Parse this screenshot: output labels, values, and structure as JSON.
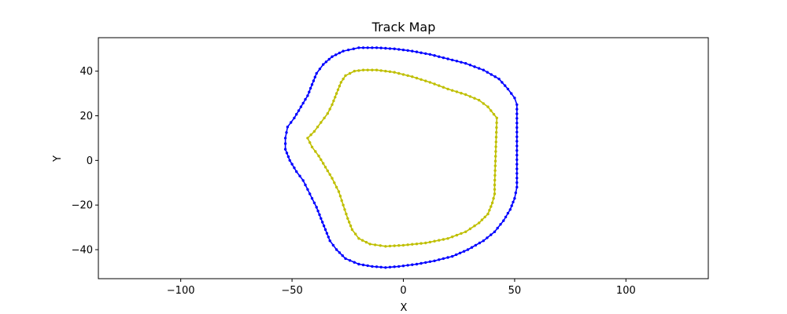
{
  "chart_data": {
    "type": "line",
    "title": "Track Map",
    "xlabel": "X",
    "ylabel": "Y",
    "xlim": [
      -137,
      137
    ],
    "ylim": [
      -53,
      55
    ],
    "xticks": [
      -100,
      -50,
      0,
      50,
      100
    ],
    "yticks": [
      -40,
      -20,
      0,
      20,
      40
    ],
    "grid": false,
    "legend": "none",
    "series": [
      {
        "color": "#0000ff",
        "marker": "dot",
        "points": [
          [
            51,
            25
          ],
          [
            51,
            -12
          ],
          [
            50,
            -17
          ],
          [
            48,
            -22
          ],
          [
            45,
            -27
          ],
          [
            41,
            -32
          ],
          [
            36,
            -36
          ],
          [
            29,
            -40
          ],
          [
            22,
            -43
          ],
          [
            14,
            -45
          ],
          [
            6,
            -46.5
          ],
          [
            -2,
            -47.5
          ],
          [
            -8,
            -48
          ],
          [
            -14,
            -47.5
          ],
          [
            -20,
            -46.5
          ],
          [
            -26,
            -44
          ],
          [
            -30,
            -40
          ],
          [
            -33,
            -36
          ],
          [
            -35,
            -31
          ],
          [
            -37,
            -26
          ],
          [
            -39,
            -21
          ],
          [
            -41,
            -17
          ],
          [
            -43,
            -13
          ],
          [
            -45,
            -9
          ],
          [
            -48,
            -5
          ],
          [
            -51,
            0
          ],
          [
            -53,
            5
          ],
          [
            -53,
            10
          ],
          [
            -52,
            15
          ],
          [
            -49,
            19
          ],
          [
            -46,
            24
          ],
          [
            -43,
            29
          ],
          [
            -41,
            34
          ],
          [
            -39,
            39
          ],
          [
            -36,
            43
          ],
          [
            -32,
            46.5
          ],
          [
            -27,
            49
          ],
          [
            -20,
            50.5
          ],
          [
            -12,
            50.5
          ],
          [
            -4,
            50
          ],
          [
            4,
            49
          ],
          [
            12,
            47.5
          ],
          [
            20,
            45.5
          ],
          [
            28,
            43.5
          ],
          [
            36,
            40.5
          ],
          [
            43,
            36.5
          ],
          [
            47,
            32
          ],
          [
            50,
            28
          ],
          [
            51,
            25
          ]
        ]
      },
      {
        "color": "#bfbf00",
        "marker": "dot",
        "points": [
          [
            42,
            19
          ],
          [
            38,
            24
          ],
          [
            34,
            27
          ],
          [
            28,
            29.5
          ],
          [
            20,
            32
          ],
          [
            12,
            35
          ],
          [
            4,
            37.5
          ],
          [
            -4,
            39.5
          ],
          [
            -12,
            40.5
          ],
          [
            -18,
            40.5
          ],
          [
            -22,
            40
          ],
          [
            -26,
            38
          ],
          [
            -28,
            35
          ],
          [
            -30,
            30
          ],
          [
            -32,
            25
          ],
          [
            -34,
            21
          ],
          [
            -37,
            17
          ],
          [
            -40,
            13
          ],
          [
            -43,
            10
          ],
          [
            -41,
            6
          ],
          [
            -38,
            2
          ],
          [
            -35,
            -3
          ],
          [
            -32,
            -8
          ],
          [
            -29,
            -14
          ],
          [
            -27,
            -20
          ],
          [
            -25,
            -26
          ],
          [
            -23,
            -31
          ],
          [
            -20,
            -35
          ],
          [
            -15,
            -37.5
          ],
          [
            -8,
            -38.5
          ],
          [
            0,
            -38
          ],
          [
            10,
            -37
          ],
          [
            20,
            -35
          ],
          [
            28,
            -32
          ],
          [
            34,
            -28
          ],
          [
            38,
            -24
          ],
          [
            40,
            -19
          ],
          [
            41,
            -15
          ],
          [
            41,
            -11
          ],
          [
            42,
            19
          ]
        ]
      }
    ]
  }
}
